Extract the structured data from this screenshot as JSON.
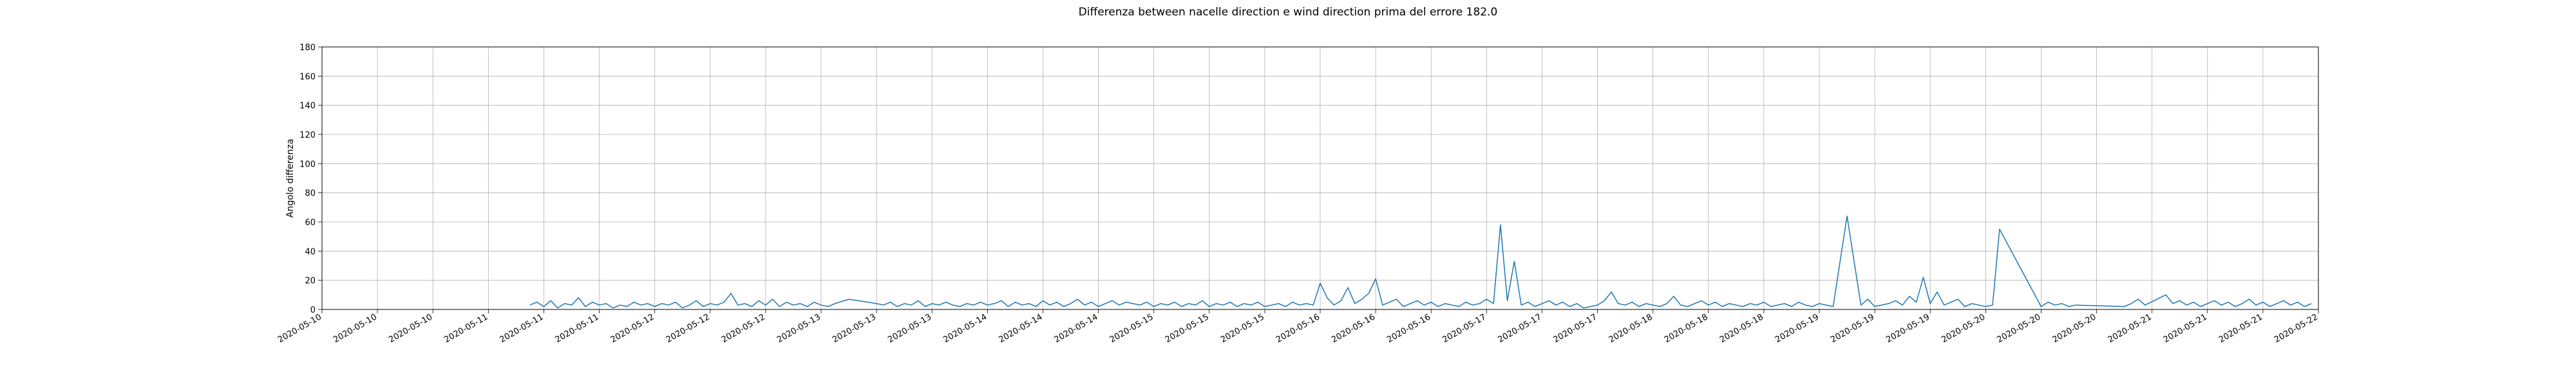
{
  "chart_data": {
    "type": "line",
    "title": "Differenza between nacelle direction e wind direction prima del errore 182.0",
    "xlabel": "",
    "ylabel": "Angolo differenza",
    "ylim": [
      0,
      180
    ],
    "yticks": [
      0,
      20,
      40,
      60,
      80,
      100,
      120,
      140,
      160,
      180
    ],
    "xlim": [
      "2020-05-10T00:00",
      "2020-05-22T00:00"
    ],
    "xticks": [
      {
        "at": "2020-05-10T00:00",
        "label": "2020-05-10"
      },
      {
        "at": "2020-05-10T08:00",
        "label": "2020-05-10"
      },
      {
        "at": "2020-05-10T16:00",
        "label": "2020-05-10"
      },
      {
        "at": "2020-05-11T00:00",
        "label": "2020-05-11"
      },
      {
        "at": "2020-05-11T08:00",
        "label": "2020-05-11"
      },
      {
        "at": "2020-05-11T16:00",
        "label": "2020-05-11"
      },
      {
        "at": "2020-05-12T00:00",
        "label": "2020-05-12"
      },
      {
        "at": "2020-05-12T08:00",
        "label": "2020-05-12"
      },
      {
        "at": "2020-05-12T16:00",
        "label": "2020-05-12"
      },
      {
        "at": "2020-05-13T00:00",
        "label": "2020-05-13"
      },
      {
        "at": "2020-05-13T08:00",
        "label": "2020-05-13"
      },
      {
        "at": "2020-05-13T16:00",
        "label": "2020-05-13"
      },
      {
        "at": "2020-05-14T00:00",
        "label": "2020-05-14"
      },
      {
        "at": "2020-05-14T08:00",
        "label": "2020-05-14"
      },
      {
        "at": "2020-05-14T16:00",
        "label": "2020-05-14"
      },
      {
        "at": "2020-05-15T00:00",
        "label": "2020-05-15"
      },
      {
        "at": "2020-05-15T08:00",
        "label": "2020-05-15"
      },
      {
        "at": "2020-05-15T16:00",
        "label": "2020-05-15"
      },
      {
        "at": "2020-05-16T00:00",
        "label": "2020-05-16"
      },
      {
        "at": "2020-05-16T08:00",
        "label": "2020-05-16"
      },
      {
        "at": "2020-05-16T16:00",
        "label": "2020-05-16"
      },
      {
        "at": "2020-05-17T00:00",
        "label": "2020-05-17"
      },
      {
        "at": "2020-05-17T08:00",
        "label": "2020-05-17"
      },
      {
        "at": "2020-05-17T16:00",
        "label": "2020-05-17"
      },
      {
        "at": "2020-05-18T00:00",
        "label": "2020-05-18"
      },
      {
        "at": "2020-05-18T08:00",
        "label": "2020-05-18"
      },
      {
        "at": "2020-05-18T16:00",
        "label": "2020-05-18"
      },
      {
        "at": "2020-05-19T00:00",
        "label": "2020-05-19"
      },
      {
        "at": "2020-05-19T08:00",
        "label": "2020-05-19"
      },
      {
        "at": "2020-05-19T16:00",
        "label": "2020-05-19"
      },
      {
        "at": "2020-05-20T00:00",
        "label": "2020-05-20"
      },
      {
        "at": "2020-05-20T08:00",
        "label": "2020-05-20"
      },
      {
        "at": "2020-05-20T16:00",
        "label": "2020-05-20"
      },
      {
        "at": "2020-05-21T00:00",
        "label": "2020-05-21"
      },
      {
        "at": "2020-05-21T08:00",
        "label": "2020-05-21"
      },
      {
        "at": "2020-05-21T16:00",
        "label": "2020-05-21"
      },
      {
        "at": "2020-05-22T00:00",
        "label": "2020-05-22"
      }
    ],
    "grid": true,
    "line_color": "#1f77b4",
    "x": [
      "2020-05-11T06:00",
      "2020-05-11T07:00",
      "2020-05-11T08:00",
      "2020-05-11T09:00",
      "2020-05-11T10:00",
      "2020-05-11T11:00",
      "2020-05-11T12:00",
      "2020-05-11T13:00",
      "2020-05-11T14:00",
      "2020-05-11T15:00",
      "2020-05-11T16:00",
      "2020-05-11T17:00",
      "2020-05-11T18:00",
      "2020-05-11T19:00",
      "2020-05-11T20:00",
      "2020-05-11T21:00",
      "2020-05-11T22:00",
      "2020-05-11T23:00",
      "2020-05-12T00:00",
      "2020-05-12T01:00",
      "2020-05-12T02:00",
      "2020-05-12T03:00",
      "2020-05-12T04:00",
      "2020-05-12T05:00",
      "2020-05-12T06:00",
      "2020-05-12T07:00",
      "2020-05-12T08:00",
      "2020-05-12T09:00",
      "2020-05-12T10:00",
      "2020-05-12T11:00",
      "2020-05-12T12:00",
      "2020-05-12T13:00",
      "2020-05-12T14:00",
      "2020-05-12T15:00",
      "2020-05-12T16:00",
      "2020-05-12T17:00",
      "2020-05-12T18:00",
      "2020-05-12T19:00",
      "2020-05-12T20:00",
      "2020-05-12T21:00",
      "2020-05-12T22:00",
      "2020-05-12T23:00",
      "2020-05-13T00:00",
      "2020-05-13T01:00",
      "2020-05-13T02:00",
      "2020-05-13T04:00",
      "2020-05-13T08:00",
      "2020-05-13T09:00",
      "2020-05-13T10:00",
      "2020-05-13T11:00",
      "2020-05-13T12:00",
      "2020-05-13T13:00",
      "2020-05-13T14:00",
      "2020-05-13T15:00",
      "2020-05-13T16:00",
      "2020-05-13T17:00",
      "2020-05-13T18:00",
      "2020-05-13T19:00",
      "2020-05-13T20:00",
      "2020-05-13T21:00",
      "2020-05-13T22:00",
      "2020-05-13T23:00",
      "2020-05-14T00:00",
      "2020-05-14T01:00",
      "2020-05-14T02:00",
      "2020-05-14T03:00",
      "2020-05-14T04:00",
      "2020-05-14T05:00",
      "2020-05-14T06:00",
      "2020-05-14T07:00",
      "2020-05-14T08:00",
      "2020-05-14T09:00",
      "2020-05-14T10:00",
      "2020-05-14T11:00",
      "2020-05-14T12:00",
      "2020-05-14T13:00",
      "2020-05-14T14:00",
      "2020-05-14T15:00",
      "2020-05-14T16:00",
      "2020-05-14T17:00",
      "2020-05-14T18:00",
      "2020-05-14T19:00",
      "2020-05-14T20:00",
      "2020-05-14T21:00",
      "2020-05-14T22:00",
      "2020-05-14T23:00",
      "2020-05-15T00:00",
      "2020-05-15T01:00",
      "2020-05-15T02:00",
      "2020-05-15T03:00",
      "2020-05-15T04:00",
      "2020-05-15T05:00",
      "2020-05-15T06:00",
      "2020-05-15T07:00",
      "2020-05-15T08:00",
      "2020-05-15T09:00",
      "2020-05-15T10:00",
      "2020-05-15T11:00",
      "2020-05-15T12:00",
      "2020-05-15T13:00",
      "2020-05-15T14:00",
      "2020-05-15T15:00",
      "2020-05-15T16:00",
      "2020-05-15T17:00",
      "2020-05-15T18:00",
      "2020-05-15T19:00",
      "2020-05-15T20:00",
      "2020-05-15T21:00",
      "2020-05-15T22:00",
      "2020-05-15T23:00",
      "2020-05-16T00:00",
      "2020-05-16T01:00",
      "2020-05-16T02:00",
      "2020-05-16T03:00",
      "2020-05-16T04:00",
      "2020-05-16T05:00",
      "2020-05-16T06:00",
      "2020-05-16T07:00",
      "2020-05-16T08:00",
      "2020-05-16T09:00",
      "2020-05-16T10:00",
      "2020-05-16T11:00",
      "2020-05-16T12:00",
      "2020-05-16T13:00",
      "2020-05-16T14:00",
      "2020-05-16T15:00",
      "2020-05-16T16:00",
      "2020-05-16T17:00",
      "2020-05-16T18:00",
      "2020-05-16T19:00",
      "2020-05-16T20:00",
      "2020-05-16T21:00",
      "2020-05-16T22:00",
      "2020-05-16T23:00",
      "2020-05-17T00:00",
      "2020-05-17T01:00",
      "2020-05-17T02:00",
      "2020-05-17T03:00",
      "2020-05-17T04:00",
      "2020-05-17T05:00",
      "2020-05-17T06:00",
      "2020-05-17T07:00",
      "2020-05-17T08:00",
      "2020-05-17T09:00",
      "2020-05-17T10:00",
      "2020-05-17T11:00",
      "2020-05-17T12:00",
      "2020-05-17T13:00",
      "2020-05-17T14:00",
      "2020-05-17T15:00",
      "2020-05-17T16:00",
      "2020-05-17T17:00",
      "2020-05-17T18:00",
      "2020-05-17T19:00",
      "2020-05-17T20:00",
      "2020-05-17T21:00",
      "2020-05-17T22:00",
      "2020-05-17T23:00",
      "2020-05-18T00:00",
      "2020-05-18T01:00",
      "2020-05-18T02:00",
      "2020-05-18T03:00",
      "2020-05-18T04:00",
      "2020-05-18T05:00",
      "2020-05-18T06:00",
      "2020-05-18T07:00",
      "2020-05-18T08:00",
      "2020-05-18T09:00",
      "2020-05-18T10:00",
      "2020-05-18T11:00",
      "2020-05-18T12:00",
      "2020-05-18T13:00",
      "2020-05-18T14:00",
      "2020-05-18T15:00",
      "2020-05-18T16:00",
      "2020-05-18T17:00",
      "2020-05-18T18:00",
      "2020-05-18T19:00",
      "2020-05-18T20:00",
      "2020-05-18T21:00",
      "2020-05-18T22:00",
      "2020-05-18T23:00",
      "2020-05-19T00:00",
      "2020-05-19T02:00",
      "2020-05-19T04:00",
      "2020-05-19T06:00",
      "2020-05-19T07:00",
      "2020-05-19T08:00",
      "2020-05-19T10:00",
      "2020-05-19T11:00",
      "2020-05-19T12:00",
      "2020-05-19T13:00",
      "2020-05-19T14:00",
      "2020-05-19T15:00",
      "2020-05-19T16:00",
      "2020-05-19T17:00",
      "2020-05-19T18:00",
      "2020-05-19T19:00",
      "2020-05-19T20:00",
      "2020-05-19T21:00",
      "2020-05-19T22:00",
      "2020-05-19T23:00",
      "2020-05-20T00:00",
      "2020-05-20T01:00",
      "2020-05-20T02:00",
      "2020-05-20T08:00",
      "2020-05-20T09:00",
      "2020-05-20T10:00",
      "2020-05-20T11:00",
      "2020-05-20T12:00",
      "2020-05-20T13:00",
      "2020-05-20T20:00",
      "2020-05-20T21:00",
      "2020-05-20T22:00",
      "2020-05-20T23:00",
      "2020-05-21T02:00",
      "2020-05-21T03:00",
      "2020-05-21T04:00",
      "2020-05-21T05:00",
      "2020-05-21T06:00",
      "2020-05-21T07:00",
      "2020-05-21T08:00",
      "2020-05-21T09:00",
      "2020-05-21T10:00",
      "2020-05-21T11:00",
      "2020-05-21T12:00",
      "2020-05-21T13:00",
      "2020-05-21T14:00",
      "2020-05-21T15:00",
      "2020-05-21T16:00",
      "2020-05-21T17:00",
      "2020-05-21T18:00",
      "2020-05-21T19:00",
      "2020-05-21T20:00",
      "2020-05-21T21:00",
      "2020-05-21T22:00",
      "2020-05-21T23:00"
    ],
    "y": [
      3,
      5,
      2,
      6,
      1,
      4,
      3,
      8,
      2,
      5,
      3,
      4,
      1,
      3,
      2,
      5,
      3,
      4,
      2,
      4,
      3,
      5,
      1,
      3,
      6,
      2,
      4,
      3,
      5,
      11,
      3,
      4,
      2,
      6,
      3,
      7,
      2,
      5,
      3,
      4,
      2,
      5,
      3,
      2,
      4,
      7,
      4,
      3,
      5,
      2,
      4,
      3,
      6,
      2,
      4,
      3,
      5,
      3,
      2,
      4,
      3,
      5,
      3,
      4,
      6,
      2,
      5,
      3,
      4,
      2,
      6,
      3,
      5,
      2,
      4,
      7,
      3,
      5,
      2,
      4,
      6,
      3,
      5,
      4,
      3,
      5,
      2,
      4,
      3,
      5,
      2,
      4,
      3,
      6,
      2,
      4,
      3,
      5,
      2,
      4,
      3,
      5,
      2,
      3,
      4,
      2,
      5,
      3,
      4,
      3,
      18,
      8,
      3,
      6,
      15,
      4,
      7,
      11,
      21,
      3,
      5,
      7,
      2,
      4,
      6,
      3,
      5,
      2,
      4,
      3,
      2,
      5,
      3,
      4,
      7,
      4,
      58,
      6,
      33,
      3,
      5,
      2,
      4,
      6,
      3,
      5,
      2,
      4,
      1,
      2,
      3,
      6,
      12,
      4,
      3,
      5,
      2,
      4,
      3,
      2,
      4,
      9,
      3,
      2,
      4,
      6,
      3,
      5,
      2,
      4,
      3,
      2,
      4,
      3,
      5,
      2,
      3,
      4,
      2,
      5,
      3,
      2,
      4,
      2,
      64,
      3,
      7,
      2,
      4,
      6,
      3,
      9,
      5,
      22,
      4,
      12,
      3,
      5,
      7,
      2,
      4,
      3,
      2,
      3,
      55,
      2,
      5,
      3,
      4,
      2,
      3,
      2,
      4,
      7,
      3,
      10,
      4,
      6,
      3,
      5,
      2,
      4,
      6,
      3,
      5,
      2,
      4,
      7,
      3,
      5,
      2,
      4,
      6,
      3,
      5,
      2,
      4
    ]
  }
}
